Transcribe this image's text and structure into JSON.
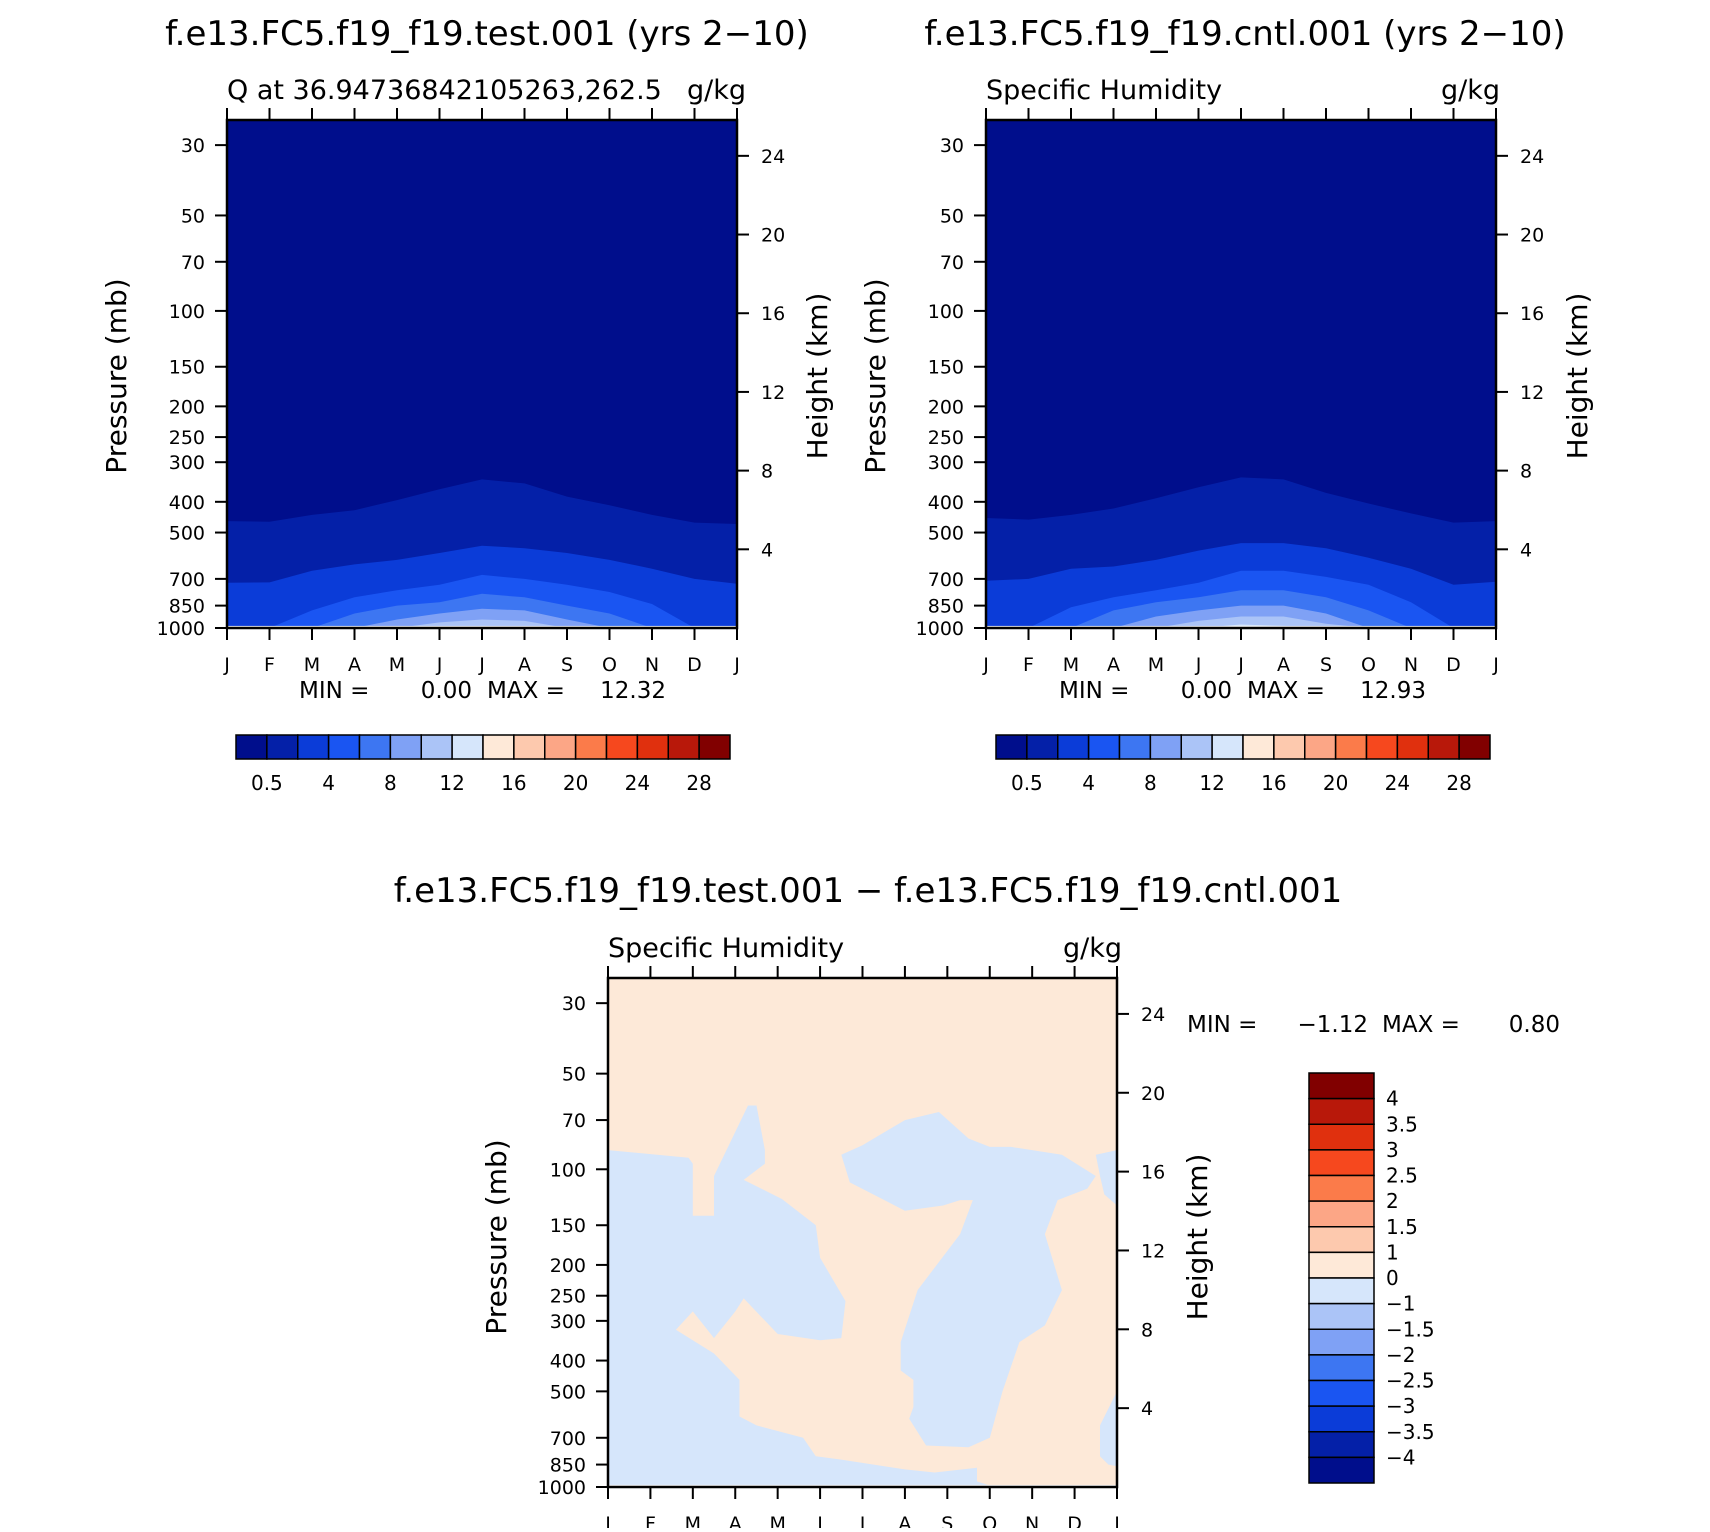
{
  "chart_data": [
    {
      "type": "heatmap",
      "case_title": "f.e13.FC5.f19_f19.test.001 (yrs 2−10)",
      "left_label": "Q at 36.94736842105263,262.5",
      "units": "g/kg",
      "ylabel": "Pressure (mb)",
      "ylabel_right": "Height (km)",
      "x_ticks": [
        "J",
        "F",
        "M",
        "A",
        "M",
        "J",
        "J",
        "A",
        "S",
        "O",
        "N",
        "D",
        "J"
      ],
      "y_ticks": [
        30,
        50,
        70,
        100,
        150,
        200,
        250,
        300,
        400,
        500,
        700,
        850,
        1000
      ],
      "y_ticks_right": [
        24,
        20,
        16,
        12,
        8,
        4
      ],
      "ylim": [
        1000,
        25
      ],
      "min_label": "MIN =",
      "min_value": "0.00",
      "max_label": "MAX =",
      "max_value": "12.32",
      "levels": [
        0.5,
        2,
        4,
        6,
        8,
        10,
        12,
        14,
        16,
        18,
        20,
        22,
        24,
        26,
        28
      ],
      "colorbar_labels": [
        "0.5",
        "4",
        "8",
        "12",
        "16",
        "20",
        "24",
        "28"
      ],
      "contour_pressure": {
        "0.5": [
          460,
          462,
          440,
          425,
          395,
          365,
          340,
          350,
          385,
          410,
          440,
          465,
          470
        ],
        "2": [
          720,
          718,
          660,
          630,
          610,
          580,
          550,
          560,
          580,
          610,
          650,
          700,
          725
        ],
        "4": [
          1000,
          1000,
          880,
          800,
          760,
          730,
          680,
          700,
          730,
          770,
          840,
          1000,
          1000
        ],
        "6": [
          1000,
          1000,
          1000,
          900,
          850,
          830,
          780,
          800,
          850,
          900,
          1000,
          1000,
          1000
        ],
        "8": [
          1000,
          1000,
          1000,
          1000,
          940,
          900,
          870,
          880,
          940,
          1000,
          1000,
          1000,
          1000
        ],
        "10": [
          1000,
          1000,
          1000,
          1000,
          1000,
          960,
          940,
          950,
          1000,
          1000,
          1000,
          1000,
          1000
        ],
        "12": [
          1000,
          1000,
          1000,
          1000,
          1000,
          1000,
          985,
          990,
          1000,
          1000,
          1000,
          1000,
          1000
        ]
      }
    },
    {
      "type": "heatmap",
      "case_title": "f.e13.FC5.f19_f19.cntl.001 (yrs 2−10)",
      "left_label": "Specific Humidity",
      "units": "g/kg",
      "ylabel": "Pressure (mb)",
      "ylabel_right": "Height (km)",
      "x_ticks": [
        "J",
        "F",
        "M",
        "A",
        "M",
        "J",
        "J",
        "A",
        "S",
        "O",
        "N",
        "D",
        "J"
      ],
      "y_ticks": [
        30,
        50,
        70,
        100,
        150,
        200,
        250,
        300,
        400,
        500,
        700,
        850,
        1000
      ],
      "y_ticks_right": [
        24,
        20,
        16,
        12,
        8,
        4
      ],
      "ylim": [
        1000,
        25
      ],
      "min_label": "MIN =",
      "min_value": "0.00",
      "max_label": "MAX =",
      "max_value": "12.93",
      "levels": [
        0.5,
        2,
        4,
        6,
        8,
        10,
        12,
        14,
        16,
        18,
        20,
        22,
        24,
        26,
        28
      ],
      "colorbar_labels": [
        "0.5",
        "4",
        "8",
        "12",
        "16",
        "20",
        "24",
        "28"
      ],
      "contour_pressure": {
        "0.5": [
          450,
          455,
          440,
          420,
          390,
          360,
          335,
          340,
          375,
          405,
          435,
          465,
          460
        ],
        "2": [
          710,
          700,
          650,
          640,
          610,
          570,
          540,
          540,
          560,
          600,
          650,
          730,
          715
        ],
        "4": [
          1000,
          1000,
          860,
          800,
          760,
          720,
          660,
          660,
          690,
          730,
          830,
          1000,
          1000
        ],
        "6": [
          1000,
          1000,
          1000,
          880,
          830,
          800,
          760,
          760,
          800,
          880,
          1000,
          1000,
          1000
        ],
        "8": [
          1000,
          1000,
          1000,
          1000,
          920,
          880,
          850,
          850,
          900,
          1000,
          1000,
          1000,
          1000
        ],
        "10": [
          1000,
          1000,
          1000,
          1000,
          1000,
          950,
          920,
          920,
          970,
          1000,
          1000,
          1000,
          1000
        ],
        "12": [
          1000,
          1000,
          1000,
          1000,
          1000,
          1000,
          975,
          985,
          1000,
          1000,
          1000,
          1000,
          1000
        ]
      }
    },
    {
      "type": "heatmap",
      "case_title": "f.e13.FC5.f19_f19.test.001 − f.e13.FC5.f19_f19.cntl.001",
      "left_label": "Specific Humidity",
      "units": "g/kg",
      "ylabel": "Pressure (mb)",
      "ylabel_right": "Height (km)",
      "x_ticks": [
        "J",
        "F",
        "M",
        "A",
        "M",
        "J",
        "J",
        "A",
        "S",
        "O",
        "N",
        "D",
        "J"
      ],
      "y_ticks": [
        30,
        50,
        70,
        100,
        150,
        200,
        250,
        300,
        400,
        500,
        700,
        850,
        1000
      ],
      "y_ticks_right": [
        24,
        20,
        16,
        12,
        8,
        4
      ],
      "ylim": [
        1000,
        25
      ],
      "min_label": "MIN =",
      "min_value": "−1.12",
      "max_label": "MAX =",
      "max_value": "0.80",
      "levels": [
        -4,
        -3.5,
        -3,
        -2.5,
        -2,
        -1.5,
        -1,
        0,
        1,
        1.5,
        2,
        2.5,
        3,
        3.5,
        4
      ],
      "colorbar_labels": [
        "4",
        "3.5",
        "3",
        "2.5",
        "2",
        "1.5",
        "1",
        "0",
        "−1",
        "−1.5",
        "−2",
        "−2.5",
        "−3",
        "−3.5",
        "−4"
      ],
      "negative_regions": [
        [
          [
            0,
            87
          ],
          [
            1.9,
            92
          ],
          [
            2.0,
            96
          ],
          [
            2.0,
            140
          ],
          [
            2.5,
            140
          ],
          [
            2.5,
            105
          ],
          [
            3.3,
            63
          ],
          [
            3.5,
            63
          ],
          [
            3.7,
            87
          ],
          [
            3.7,
            96
          ],
          [
            3.2,
            108
          ],
          [
            4.1,
            124
          ],
          [
            4.9,
            150
          ],
          [
            5.0,
            190
          ],
          [
            5.6,
            260
          ],
          [
            5.5,
            340
          ],
          [
            5.0,
            345
          ],
          [
            4.0,
            330
          ],
          [
            3.2,
            255
          ],
          [
            3.0,
            280
          ],
          [
            2.5,
            340
          ],
          [
            2.0,
            280
          ],
          [
            1.6,
            320
          ],
          [
            2.5,
            380
          ],
          [
            3.1,
            460
          ],
          [
            3.1,
            600
          ],
          [
            3.5,
            640
          ],
          [
            4.6,
            700
          ],
          [
            4.9,
            800
          ],
          [
            5.5,
            820
          ],
          [
            7.0,
            880
          ],
          [
            7.7,
            900
          ],
          [
            8.7,
            870
          ],
          [
            8.7,
            960
          ],
          [
            9.0,
            990
          ],
          [
            0,
            990
          ]
        ],
        [
          [
            5.5,
            90
          ],
          [
            6.0,
            84
          ],
          [
            7.0,
            70
          ],
          [
            7.8,
            66
          ],
          [
            8.5,
            80
          ],
          [
            9.0,
            85
          ],
          [
            9.5,
            85
          ],
          [
            10.7,
            90
          ],
          [
            11.5,
            105
          ],
          [
            11.3,
            115
          ],
          [
            10.6,
            125
          ],
          [
            10.3,
            160
          ],
          [
            10.7,
            240
          ],
          [
            10.3,
            310
          ],
          [
            9.7,
            350
          ],
          [
            9.3,
            500
          ],
          [
            9.0,
            700
          ],
          [
            8.5,
            750
          ],
          [
            7.5,
            740
          ],
          [
            7.1,
            610
          ],
          [
            7.2,
            560
          ],
          [
            7.2,
            460
          ],
          [
            6.9,
            430
          ],
          [
            6.9,
            350
          ],
          [
            7.3,
            240
          ],
          [
            8.3,
            160
          ],
          [
            8.6,
            125
          ],
          [
            8.3,
            125
          ],
          [
            7.9,
            130
          ],
          [
            7.0,
            135
          ],
          [
            5.7,
            110
          ]
        ],
        [
          [
            11.5,
            90
          ],
          [
            12.0,
            87
          ],
          [
            12.0,
            130
          ],
          [
            11.7,
            120
          ],
          [
            11.6,
            105
          ]
        ],
        [
          [
            12.0,
            500
          ],
          [
            12.0,
            860
          ],
          [
            11.8,
            850
          ],
          [
            11.6,
            800
          ],
          [
            11.6,
            640
          ]
        ]
      ]
    }
  ]
}
